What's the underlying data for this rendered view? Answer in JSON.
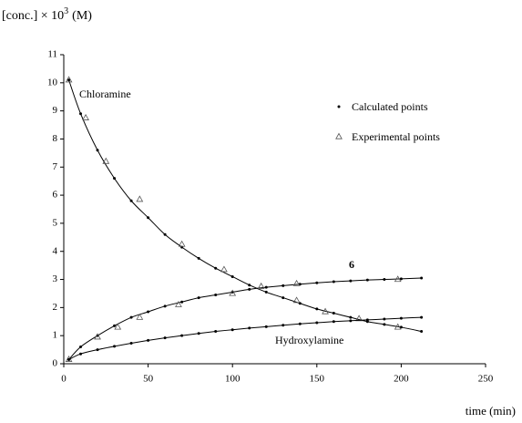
{
  "chart_data": {
    "type": "line",
    "ylabel_base": "[conc.] × 10",
    "ylabel_exp": "3",
    "ylabel_unit": "(M)",
    "xlabel": "time (min)",
    "xlim": [
      0,
      250
    ],
    "xticks": [
      0,
      50,
      100,
      150,
      200,
      250
    ],
    "ylim": [
      0,
      11
    ],
    "yticks": [
      0,
      1,
      2,
      3,
      4,
      5,
      6,
      7,
      8,
      9,
      10,
      11
    ],
    "legend": [
      "Calculated points",
      "Experimental points"
    ],
    "color": "#000000",
    "x": [
      3,
      10,
      20,
      30,
      40,
      50,
      60,
      70,
      80,
      90,
      100,
      110,
      120,
      130,
      140,
      150,
      160,
      170,
      180,
      190,
      200,
      212
    ],
    "series": [
      {
        "name": "Chloramine",
        "values": [
          10.1,
          8.9,
          7.6,
          6.6,
          5.8,
          5.2,
          4.6,
          4.15,
          3.75,
          3.4,
          3.1,
          2.8,
          2.55,
          2.35,
          2.15,
          1.95,
          1.8,
          1.65,
          1.5,
          1.4,
          1.3,
          1.15
        ],
        "experimental": {
          "x": [
            3,
            13,
            25,
            45,
            70,
            95,
            138,
            155,
            175,
            198
          ],
          "values": [
            10.1,
            8.75,
            7.2,
            5.85,
            4.25,
            3.35,
            2.25,
            1.85,
            1.6,
            1.3
          ]
        }
      },
      {
        "name": "6",
        "values": [
          0.15,
          0.6,
          1.0,
          1.35,
          1.65,
          1.85,
          2.05,
          2.2,
          2.35,
          2.45,
          2.55,
          2.65,
          2.72,
          2.78,
          2.83,
          2.88,
          2.92,
          2.95,
          2.98,
          3.0,
          3.02,
          3.05
        ],
        "experimental": {
          "x": [
            3,
            20,
            32,
            45,
            68,
            100,
            117,
            138,
            198
          ],
          "values": [
            0.15,
            0.95,
            1.3,
            1.65,
            2.1,
            2.5,
            2.75,
            2.85,
            3.0
          ]
        }
      },
      {
        "name": "Hydroxylamine",
        "values": [
          0.15,
          0.35,
          0.5,
          0.62,
          0.73,
          0.83,
          0.92,
          1.0,
          1.08,
          1.15,
          1.21,
          1.27,
          1.32,
          1.37,
          1.42,
          1.46,
          1.5,
          1.53,
          1.56,
          1.59,
          1.62,
          1.65
        ]
      }
    ]
  }
}
